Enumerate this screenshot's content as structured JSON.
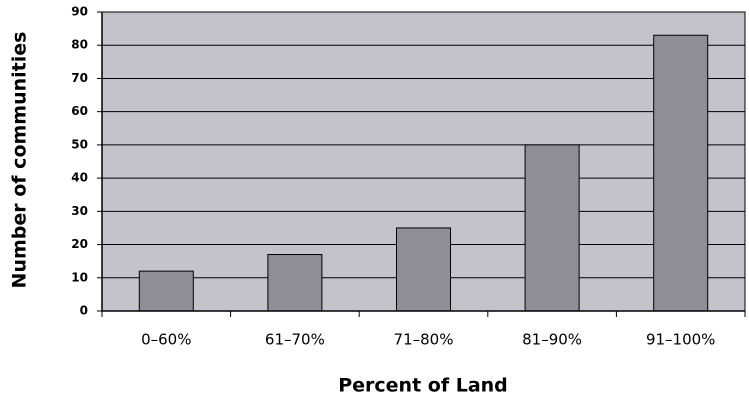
{
  "chart_data": {
    "type": "bar",
    "x_label": "Percent of Land",
    "y_label": "Number of communities",
    "categories": [
      "0–60%",
      "61–70%",
      "71–80%",
      "81–90%",
      "91–100%"
    ],
    "values": [
      12,
      17,
      25,
      50,
      83
    ],
    "color": "#8e8e96",
    "background": "#c3c3cb",
    "ylim": [
      0,
      90
    ],
    "yticks": [
      0,
      10,
      20,
      30,
      40,
      50,
      60,
      70,
      80,
      90
    ],
    "grid": true
  }
}
